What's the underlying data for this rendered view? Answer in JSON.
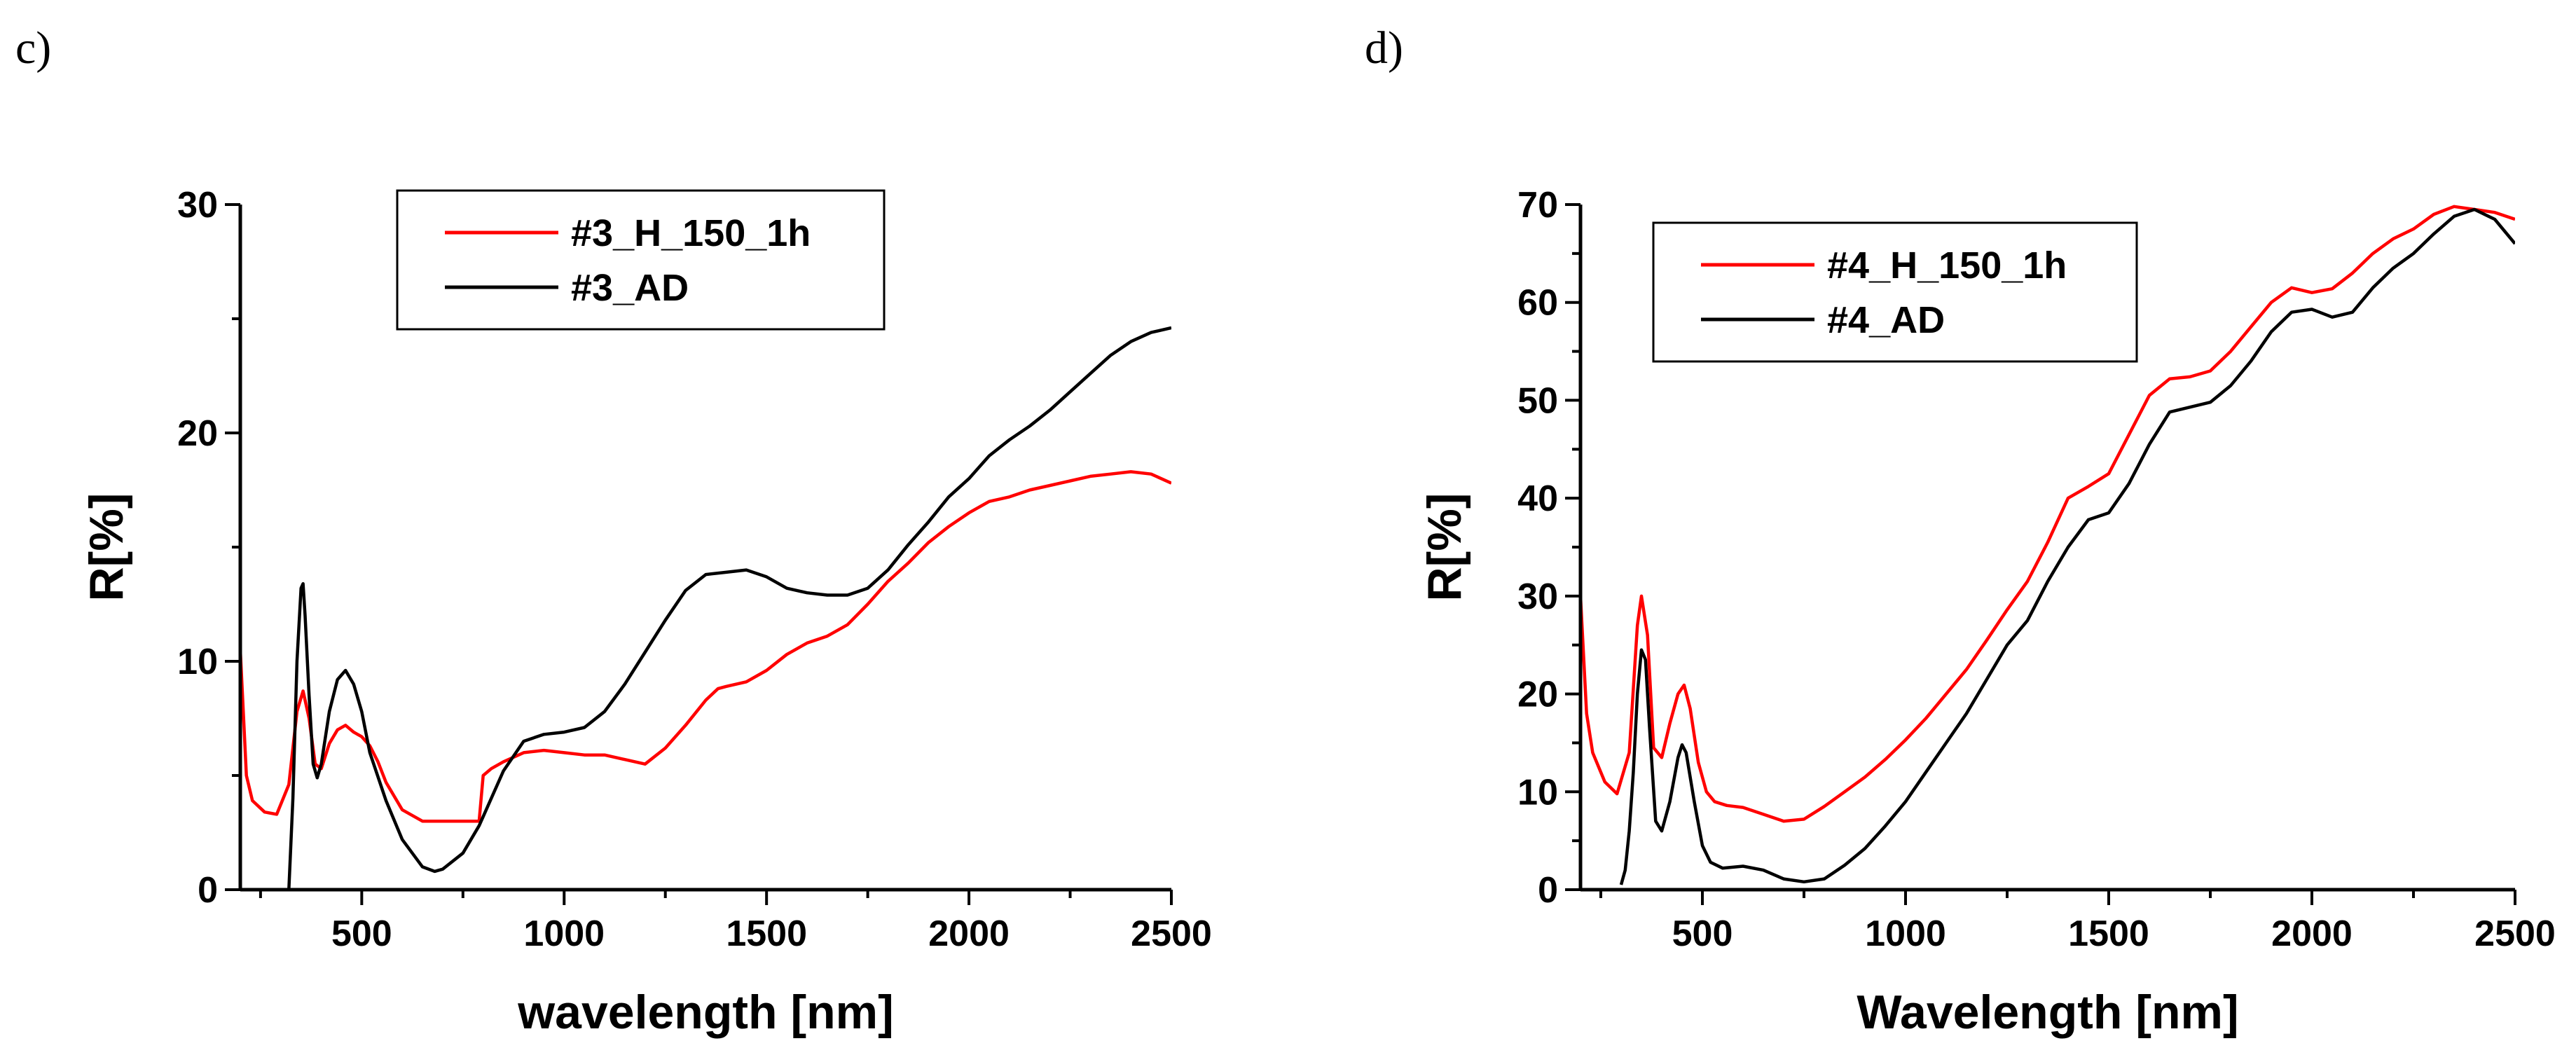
{
  "chart_data": [
    {
      "panel_label": "c)",
      "type": "line",
      "title": "",
      "xlabel": "wavelength [nm]",
      "ylabel": "R[%]",
      "xlim": [
        200,
        2500
      ],
      "ylim": [
        0,
        30
      ],
      "xticks": [
        500,
        1000,
        1500,
        2000,
        2500
      ],
      "xtick_labels": [
        "500",
        "1000",
        "1500",
        "2000",
        "2500"
      ],
      "yticks": [
        0,
        10,
        20,
        30
      ],
      "ytick_labels": [
        "0",
        "10",
        "20",
        "30"
      ],
      "legend_position": "top-center",
      "series": [
        {
          "name": "#3_H_150_1h",
          "color": "#ff0000",
          "x": [
            200,
            215,
            230,
            260,
            290,
            320,
            340,
            355,
            370,
            385,
            400,
            420,
            440,
            460,
            480,
            500,
            520,
            540,
            560,
            600,
            650,
            700,
            750,
            790,
            800,
            820,
            850,
            900,
            950,
            1000,
            1050,
            1100,
            1150,
            1200,
            1250,
            1300,
            1350,
            1380,
            1400,
            1450,
            1500,
            1550,
            1600,
            1650,
            1700,
            1750,
            1800,
            1850,
            1900,
            1950,
            2000,
            2050,
            2100,
            2150,
            2200,
            2250,
            2300,
            2350,
            2400,
            2450,
            2500
          ],
          "y": [
            10.5,
            5.0,
            3.9,
            3.4,
            3.3,
            4.6,
            7.8,
            8.7,
            7.5,
            5.5,
            5.3,
            6.4,
            7.0,
            7.2,
            6.9,
            6.7,
            6.3,
            5.6,
            4.7,
            3.5,
            3.0,
            3.0,
            3.0,
            3.0,
            5.0,
            5.3,
            5.6,
            6.0,
            6.1,
            6.0,
            5.9,
            5.9,
            5.7,
            5.5,
            6.2,
            7.2,
            8.3,
            8.8,
            8.9,
            9.1,
            9.6,
            10.3,
            10.8,
            11.1,
            11.6,
            12.5,
            13.5,
            14.3,
            15.2,
            15.9,
            16.5,
            17.0,
            17.2,
            17.5,
            17.7,
            17.9,
            18.1,
            18.2,
            18.3,
            18.2,
            17.8
          ]
        },
        {
          "name": "#3_AD",
          "color": "#000000",
          "x": [
            320,
            330,
            340,
            350,
            355,
            360,
            370,
            380,
            390,
            400,
            420,
            440,
            460,
            480,
            500,
            520,
            560,
            600,
            650,
            680,
            700,
            750,
            790,
            800,
            850,
            900,
            950,
            1000,
            1050,
            1100,
            1150,
            1200,
            1250,
            1300,
            1350,
            1400,
            1450,
            1500,
            1550,
            1600,
            1650,
            1700,
            1750,
            1800,
            1850,
            1900,
            1950,
            2000,
            2050,
            2100,
            2150,
            2200,
            2250,
            2300,
            2350,
            2400,
            2450,
            2500
          ],
          "y": [
            0,
            4.0,
            10.0,
            13.2,
            13.4,
            12.0,
            8.5,
            5.5,
            4.9,
            5.5,
            7.8,
            9.2,
            9.6,
            9.0,
            7.8,
            6.0,
            3.9,
            2.2,
            1.0,
            0.8,
            0.9,
            1.6,
            2.8,
            3.2,
            5.2,
            6.5,
            6.8,
            6.9,
            7.1,
            7.8,
            9.0,
            10.4,
            11.8,
            13.1,
            13.8,
            13.9,
            14.0,
            13.7,
            13.2,
            13.0,
            12.9,
            12.9,
            13.2,
            14.0,
            15.1,
            16.1,
            17.2,
            18.0,
            19.0,
            19.7,
            20.3,
            21.0,
            21.8,
            22.6,
            23.4,
            24.0,
            24.4,
            24.6
          ]
        }
      ]
    },
    {
      "panel_label": "d)",
      "type": "line",
      "title": "",
      "xlabel": "Wavelength [nm]",
      "ylabel": "R[%]",
      "xlim": [
        200,
        2500
      ],
      "ylim": [
        0,
        70
      ],
      "xticks": [
        500,
        1000,
        1500,
        2000,
        2500
      ],
      "xtick_labels": [
        "500",
        "1000",
        "1500",
        "2000",
        "2500"
      ],
      "yticks": [
        0,
        10,
        20,
        30,
        40,
        50,
        60,
        70
      ],
      "ytick_labels": [
        "0",
        "10",
        "20",
        "30",
        "40",
        "50",
        "60",
        "70"
      ],
      "legend_position": "top-left",
      "series": [
        {
          "name": "#4_H_150_1h",
          "color": "#ff0000",
          "x": [
            200,
            215,
            230,
            260,
            290,
            320,
            340,
            350,
            365,
            380,
            400,
            420,
            440,
            455,
            470,
            490,
            510,
            530,
            560,
            600,
            650,
            700,
            750,
            800,
            850,
            900,
            950,
            1000,
            1050,
            1100,
            1150,
            1200,
            1250,
            1300,
            1350,
            1400,
            1450,
            1500,
            1550,
            1600,
            1650,
            1700,
            1750,
            1800,
            1850,
            1900,
            1950,
            2000,
            2050,
            2100,
            2150,
            2200,
            2250,
            2300,
            2350,
            2400,
            2450,
            2500
          ],
          "y": [
            30.0,
            18.0,
            14.0,
            11.0,
            9.8,
            14.0,
            27.0,
            30.0,
            26.0,
            14.5,
            13.5,
            17.0,
            20.0,
            20.9,
            18.5,
            13.0,
            10.0,
            9.0,
            8.6,
            8.4,
            7.7,
            7.0,
            7.2,
            8.5,
            10.0,
            11.5,
            13.3,
            15.3,
            17.5,
            20.0,
            22.5,
            25.5,
            28.6,
            31.5,
            35.5,
            40.0,
            41.2,
            42.5,
            46.5,
            50.5,
            52.2,
            52.4,
            53.0,
            55.0,
            57.5,
            60.0,
            61.5,
            61.0,
            61.4,
            63.0,
            65.0,
            66.5,
            67.5,
            69.0,
            69.8,
            69.5,
            69.2,
            68.5
          ]
        },
        {
          "name": "#4_AD",
          "color": "#000000",
          "x": [
            300,
            310,
            320,
            330,
            340,
            350,
            360,
            370,
            385,
            400,
            420,
            440,
            450,
            460,
            480,
            500,
            520,
            550,
            600,
            650,
            700,
            750,
            800,
            850,
            900,
            950,
            1000,
            1050,
            1100,
            1150,
            1200,
            1250,
            1300,
            1350,
            1400,
            1450,
            1500,
            1550,
            1600,
            1650,
            1700,
            1750,
            1800,
            1850,
            1900,
            1950,
            2000,
            2050,
            2100,
            2150,
            2200,
            2250,
            2300,
            2350,
            2400,
            2450,
            2500
          ],
          "y": [
            0.5,
            2.0,
            6.0,
            12.0,
            20.0,
            24.5,
            23.5,
            16.5,
            7.0,
            6.0,
            9.0,
            13.5,
            14.8,
            14.0,
            9.0,
            4.5,
            2.8,
            2.2,
            2.4,
            2.0,
            1.1,
            0.8,
            1.1,
            2.5,
            4.2,
            6.5,
            9.0,
            12.0,
            15.0,
            18.0,
            21.5,
            25.0,
            27.5,
            31.5,
            35.0,
            37.8,
            38.5,
            41.5,
            45.5,
            48.8,
            49.3,
            49.8,
            51.5,
            54.0,
            57.0,
            59.0,
            59.3,
            58.5,
            59.0,
            61.5,
            63.5,
            65.0,
            67.0,
            68.8,
            69.5,
            68.5,
            66.0
          ]
        }
      ]
    }
  ]
}
